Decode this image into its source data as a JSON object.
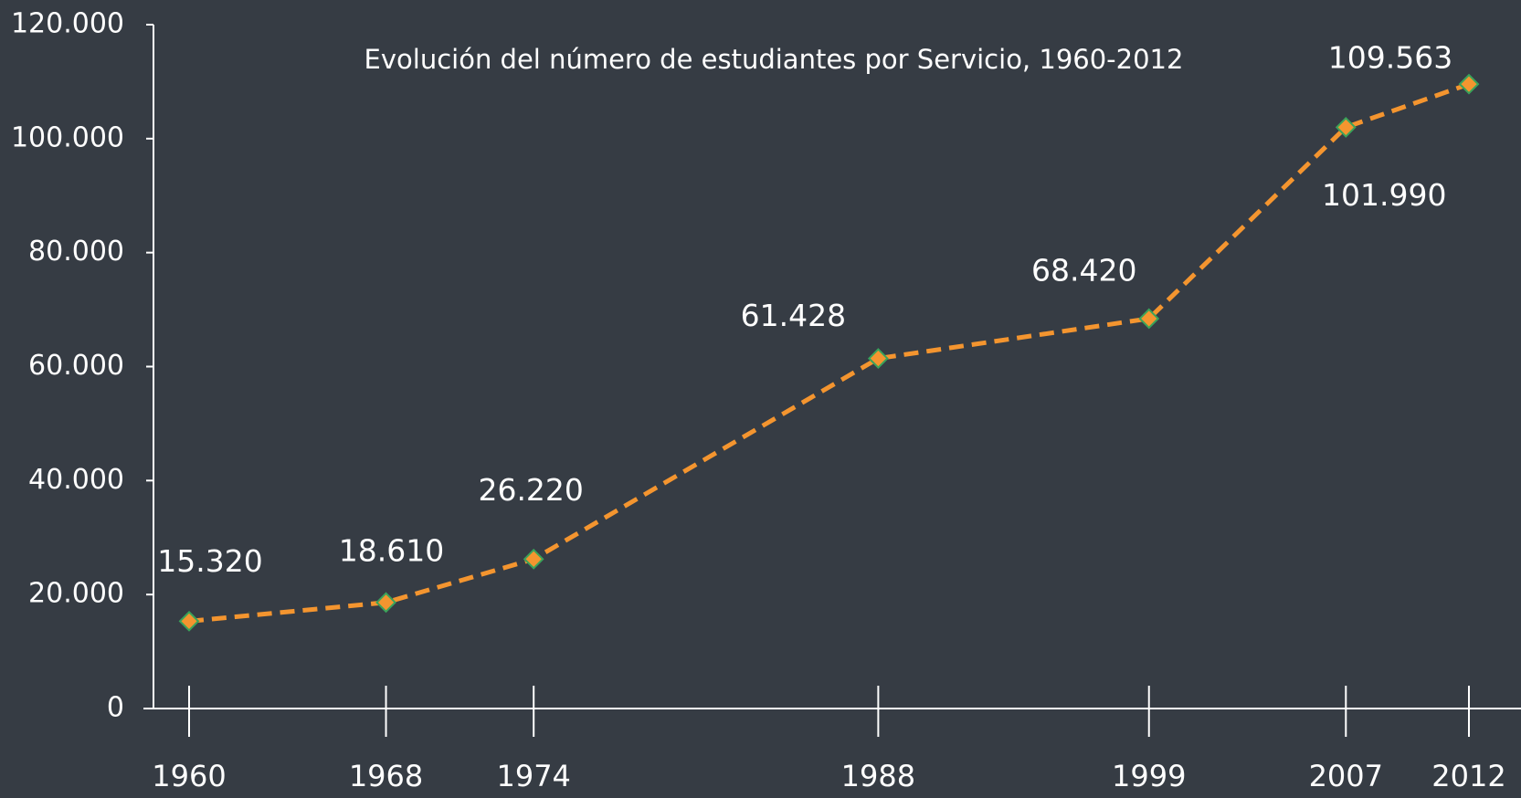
{
  "chart_data": {
    "type": "line",
    "title": "Evolución del número de estudiantes por Servicio, 1960-2012",
    "x": [
      1960,
      1968,
      1974,
      1988,
      1999,
      2007,
      2012
    ],
    "xticks": [
      1960,
      1968,
      1974,
      1988,
      1999,
      2007,
      2012
    ],
    "xlim": [
      1960,
      2012
    ],
    "series": [
      {
        "name": "Estudiantes",
        "color": "#f4952f",
        "values": [
          15320,
          18610,
          26220,
          61428,
          68420,
          101990,
          109563
        ],
        "value_labels": [
          "15.320",
          "18.610",
          "26.220",
          "61.428",
          "68.420",
          "101.990",
          "109.563"
        ]
      }
    ],
    "ylim": [
      0,
      120000
    ],
    "yticks": [
      0,
      {
        "value": 20000,
        "label": "20.000"
      },
      {
        "value": 40000,
        "label": "40.000"
      },
      {
        "value": 60000,
        "label": "60.000"
      },
      {
        "value": 80000,
        "label": "80.000"
      },
      {
        "value": 100000,
        "label": "100.000"
      },
      {
        "value": 120000,
        "label": "120.000"
      }
    ]
  }
}
